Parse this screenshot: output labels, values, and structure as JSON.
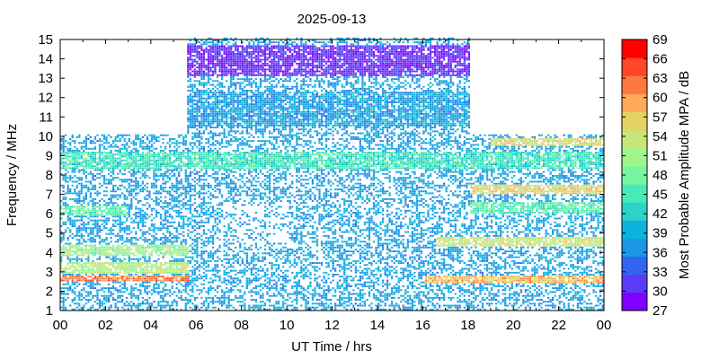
{
  "chart_data": {
    "type": "heatmap",
    "title": "2025-09-13",
    "xlabel": "UT Time / hrs",
    "ylabel": "Frequency / MHz",
    "xlim": [
      0,
      24
    ],
    "ylim": [
      1,
      15
    ],
    "x_ticks": [
      "00",
      "02",
      "04",
      "06",
      "08",
      "10",
      "12",
      "14",
      "16",
      "18",
      "20",
      "22",
      "00"
    ],
    "x_tick_values": [
      0,
      2,
      4,
      6,
      8,
      10,
      12,
      14,
      16,
      18,
      20,
      22,
      24
    ],
    "y_ticks": [
      "1",
      "2",
      "3",
      "4",
      "5",
      "6",
      "7",
      "8",
      "9",
      "10",
      "11",
      "12",
      "13",
      "14",
      "15"
    ],
    "y_tick_values": [
      1,
      2,
      3,
      4,
      5,
      6,
      7,
      8,
      9,
      10,
      11,
      12,
      13,
      14,
      15
    ],
    "colorbar": {
      "label": "Most Probable Amplitude MPA / dB",
      "range": [
        27,
        69
      ],
      "tick_labels": [
        "27",
        "30",
        "33",
        "36",
        "39",
        "42",
        "45",
        "48",
        "51",
        "54",
        "57",
        "60",
        "63",
        "66",
        "69"
      ],
      "tick_values": [
        27,
        30,
        33,
        36,
        39,
        42,
        45,
        48,
        51,
        54,
        57,
        60,
        63,
        66,
        69
      ],
      "colors": [
        "#7f00ff",
        "#5a3cf7",
        "#3264f0",
        "#1996e6",
        "#0ab4dc",
        "#2dd2c8",
        "#46ebb9",
        "#78f5a0",
        "#a0f58c",
        "#c8e678",
        "#e6d264",
        "#ffaa5a",
        "#ff7841",
        "#ff4628",
        "#ff0000"
      ]
    },
    "coverage": [
      {
        "x_range": [
          0,
          5.5
        ],
        "y_range": [
          1,
          10
        ]
      },
      {
        "x_range": [
          5.5,
          18
        ],
        "y_range": [
          1,
          15
        ]
      },
      {
        "x_range": [
          18,
          24
        ],
        "y_range": [
          1,
          10
        ]
      }
    ],
    "bands": [
      {
        "x_range": [
          0,
          5.6
        ],
        "y_center": 2.6,
        "y_width": 0.35,
        "mpa": 62
      },
      {
        "x_range": [
          0,
          5.6
        ],
        "y_center": 3.2,
        "y_width": 0.6,
        "mpa": 52
      },
      {
        "x_range": [
          0,
          5.6
        ],
        "y_center": 4.1,
        "y_width": 0.6,
        "mpa": 50
      },
      {
        "x_range": [
          0,
          3.0
        ],
        "y_center": 6.1,
        "y_width": 0.5,
        "mpa": 46
      },
      {
        "x_range": [
          0,
          24
        ],
        "y_center": 8.7,
        "y_width": 0.9,
        "mpa": 44
      },
      {
        "x_range": [
          5.5,
          18
        ],
        "y_center": 13.8,
        "y_width": 1.6,
        "mpa": 30
      },
      {
        "x_range": [
          5.5,
          18
        ],
        "y_center": 11.3,
        "y_width": 1.8,
        "mpa": 38
      },
      {
        "x_range": [
          16,
          24
        ],
        "y_center": 2.6,
        "y_width": 0.4,
        "mpa": 58
      },
      {
        "x_range": [
          16.5,
          24
        ],
        "y_center": 4.5,
        "y_width": 0.5,
        "mpa": 54
      },
      {
        "x_range": [
          18,
          24
        ],
        "y_center": 7.2,
        "y_width": 0.5,
        "mpa": 56
      },
      {
        "x_range": [
          18,
          24
        ],
        "y_center": 6.2,
        "y_width": 0.6,
        "mpa": 46
      },
      {
        "x_range": [
          19,
          24
        ],
        "y_center": 9.6,
        "y_width": 0.4,
        "mpa": 55
      }
    ]
  }
}
